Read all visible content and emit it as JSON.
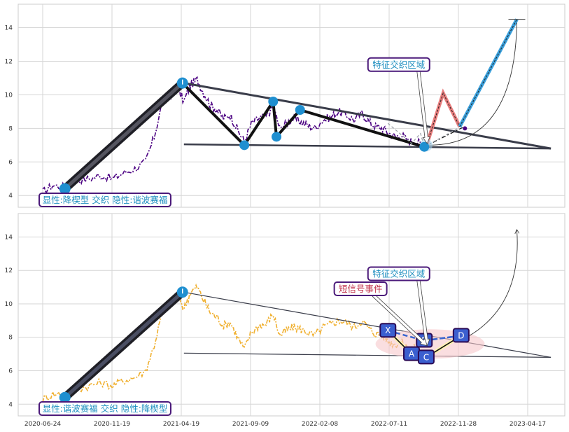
{
  "chart_data": {
    "type": "line",
    "x_ticks": [
      "2020-06-24",
      "2020-11-19",
      "2021-04-19",
      "2021-09-09",
      "2022-02-08",
      "2022-07-11",
      "2022-11-28",
      "2023-04-17"
    ],
    "y_ticks": [
      4,
      6,
      8,
      10,
      12,
      14
    ],
    "ylim": [
      3.3,
      15.4
    ],
    "grid": true,
    "panels": [
      {
        "series_color": "#4b0082",
        "corner_label": "显性:降楔型 交织 隐性:谐波赛福",
        "annotations": [
          {
            "text": "特征交织区域",
            "color": "#1f8fc0",
            "x": "2022-07-18",
            "y": 11.8
          }
        ],
        "pivots": [
          {
            "x": "2020-08-10",
            "y": 4.4
          },
          {
            "x": "2021-04-16",
            "y": 10.7
          },
          {
            "x": "2021-08-25",
            "y": 7.0
          },
          {
            "x": "2021-10-25",
            "y": 9.6
          },
          {
            "x": "2021-11-01",
            "y": 7.5
          },
          {
            "x": "2021-12-21",
            "y": 9.1
          },
          {
            "x": "2022-09-10",
            "y": 6.9
          }
        ],
        "upper_line": [
          {
            "x": "2021-04-19",
            "y": 10.7
          },
          {
            "x": "2023-06-05",
            "y": 6.8
          }
        ],
        "lower_line": [
          {
            "x": "2021-04-19",
            "y": 7.05
          },
          {
            "x": "2023-06-05",
            "y": 6.8
          }
        ],
        "projection": [
          {
            "x": "2022-09-15",
            "y": 7.0
          },
          {
            "x": "2022-10-20",
            "y": 10.1
          },
          {
            "x": "2022-11-24",
            "y": 8.1
          },
          {
            "x": "2023-03-25",
            "y": 14.5
          }
        ],
        "projection_colors": [
          "#e87d7d",
          "#3aa0dc"
        ],
        "price": [
          [
            "2020-06-24",
            4.2
          ],
          [
            "2020-07-15",
            4.6
          ],
          [
            "2020-08-10",
            4.5
          ],
          [
            "2020-09-05",
            4.9
          ],
          [
            "2020-10-01",
            5.0
          ],
          [
            "2020-10-25",
            5.2
          ],
          [
            "2020-11-19",
            5.0
          ],
          [
            "2020-12-10",
            5.3
          ],
          [
            "2021-01-05",
            5.6
          ],
          [
            "2021-01-28",
            6.0
          ],
          [
            "2021-02-15",
            7.5
          ],
          [
            "2021-03-05",
            9.6
          ],
          [
            "2021-03-22",
            10.0
          ],
          [
            "2021-04-05",
            10.4
          ],
          [
            "2021-04-19",
            9.6
          ],
          [
            "2021-05-03",
            10.6
          ],
          [
            "2021-05-17",
            10.9
          ],
          [
            "2021-05-31",
            10.1
          ],
          [
            "2021-06-14",
            9.4
          ],
          [
            "2021-06-28",
            9.1
          ],
          [
            "2021-07-12",
            8.6
          ],
          [
            "2021-07-26",
            8.8
          ],
          [
            "2021-08-09",
            8.0
          ],
          [
            "2021-08-25",
            7.2
          ],
          [
            "2021-09-09",
            8.3
          ],
          [
            "2021-09-25",
            8.6
          ],
          [
            "2021-10-10",
            8.7
          ],
          [
            "2021-10-25",
            9.3
          ],
          [
            "2021-11-08",
            8.0
          ],
          [
            "2021-11-22",
            8.3
          ],
          [
            "2021-12-06",
            8.6
          ],
          [
            "2021-12-21",
            8.4
          ],
          [
            "2022-01-05",
            8.2
          ],
          [
            "2022-01-20",
            8.0
          ],
          [
            "2022-02-08",
            8.5
          ],
          [
            "2022-02-25",
            8.7
          ],
          [
            "2022-03-12",
            9.0
          ],
          [
            "2022-03-28",
            8.8
          ],
          [
            "2022-04-15",
            8.5
          ],
          [
            "2022-05-01",
            8.9
          ],
          [
            "2022-05-16",
            8.4
          ],
          [
            "2022-05-30",
            8.1
          ],
          [
            "2022-06-14",
            8.0
          ],
          [
            "2022-06-28",
            7.7
          ],
          [
            "2022-07-11",
            7.5
          ],
          [
            "2022-07-25",
            7.6
          ],
          [
            "2022-08-08",
            7.2
          ],
          [
            "2022-08-22",
            7.3
          ],
          [
            "2022-09-05",
            7.0
          ]
        ]
      },
      {
        "series_color": "#f0b030",
        "corner_label": "显性:谐波赛福 交织 隐性:降楔型",
        "annotations": [
          {
            "text": "特征交织区域",
            "color": "#1f8fc0",
            "x": "2022-07-18",
            "y": 11.8
          },
          {
            "text": "短信号事件",
            "color": "#c0304a",
            "x": "2022-04-28",
            "y": 10.9
          }
        ],
        "pivots": [
          {
            "x": "2020-08-10",
            "y": 4.4
          },
          {
            "x": "2021-04-16",
            "y": 10.7
          }
        ],
        "upper_line": [
          {
            "x": "2021-04-19",
            "y": 10.7
          },
          {
            "x": "2023-06-05",
            "y": 6.8
          }
        ],
        "lower_line": [
          {
            "x": "2021-04-19",
            "y": 7.05
          },
          {
            "x": "2023-06-05",
            "y": 6.8
          }
        ],
        "harmonic_points": [
          {
            "label": "X",
            "x": "2022-06-25",
            "y": 8.4
          },
          {
            "label": "A",
            "x": "2022-08-14",
            "y": 7.0
          },
          {
            "label": "B",
            "x": "2022-09-10",
            "y": 7.8
          },
          {
            "label": "C",
            "x": "2022-09-14",
            "y": 6.8
          },
          {
            "label": "D",
            "x": "2022-11-27",
            "y": 8.1
          }
        ],
        "price": [
          [
            "2020-06-24",
            4.3
          ],
          [
            "2020-07-15",
            4.6
          ],
          [
            "2020-08-10",
            4.6
          ],
          [
            "2020-09-05",
            4.9
          ],
          [
            "2020-10-01",
            5.1
          ],
          [
            "2020-10-25",
            5.3
          ],
          [
            "2020-11-19",
            5.1
          ],
          [
            "2020-12-10",
            5.4
          ],
          [
            "2021-01-05",
            5.6
          ],
          [
            "2021-01-28",
            6.0
          ],
          [
            "2021-02-15",
            7.5
          ],
          [
            "2021-03-05",
            9.6
          ],
          [
            "2021-03-22",
            10.2
          ],
          [
            "2021-04-05",
            10.6
          ],
          [
            "2021-04-19",
            9.7
          ],
          [
            "2021-05-03",
            10.7
          ],
          [
            "2021-05-17",
            11.0
          ],
          [
            "2021-05-31",
            10.2
          ],
          [
            "2021-06-14",
            9.5
          ],
          [
            "2021-06-28",
            9.2
          ],
          [
            "2021-07-12",
            8.7
          ],
          [
            "2021-07-26",
            8.9
          ],
          [
            "2021-08-09",
            8.1
          ],
          [
            "2021-08-25",
            7.3
          ],
          [
            "2021-09-09",
            8.3
          ],
          [
            "2021-09-25",
            8.7
          ],
          [
            "2021-10-10",
            8.8
          ],
          [
            "2021-10-25",
            9.4
          ],
          [
            "2021-11-08",
            8.1
          ],
          [
            "2021-11-22",
            8.4
          ],
          [
            "2021-12-06",
            8.6
          ],
          [
            "2021-12-21",
            8.5
          ],
          [
            "2022-01-05",
            8.3
          ],
          [
            "2022-01-20",
            8.1
          ],
          [
            "2022-02-08",
            8.6
          ],
          [
            "2022-02-25",
            8.8
          ],
          [
            "2022-03-12",
            9.0
          ],
          [
            "2022-03-28",
            8.9
          ],
          [
            "2022-04-15",
            8.6
          ],
          [
            "2022-05-01",
            9.0
          ],
          [
            "2022-05-16",
            8.5
          ],
          [
            "2022-05-30",
            8.2
          ],
          [
            "2022-06-14",
            8.1
          ],
          [
            "2022-06-28",
            7.7
          ],
          [
            "2022-07-11",
            7.6
          ],
          [
            "2022-07-25",
            7.7
          ],
          [
            "2022-08-08",
            7.3
          ],
          [
            "2022-08-22",
            7.4
          ],
          [
            "2022-09-05",
            7.1
          ]
        ]
      }
    ]
  }
}
